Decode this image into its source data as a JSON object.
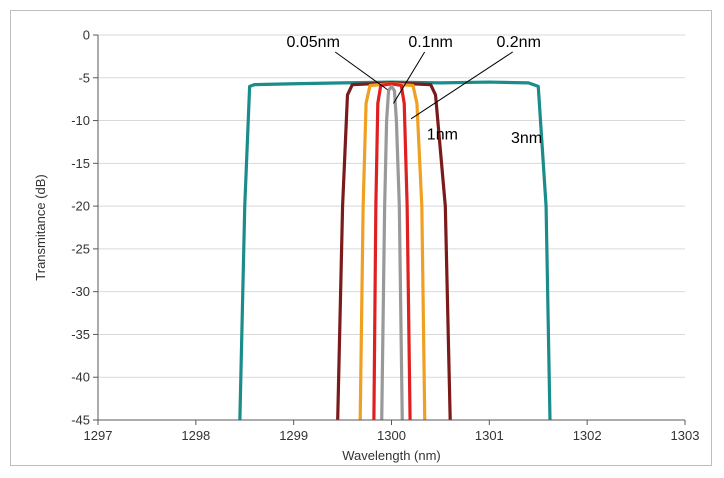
{
  "chart_data": {
    "type": "line",
    "title": "",
    "xlabel": "Wavelength (nm)",
    "ylabel": "Transmitance (dB)",
    "xlim": [
      1297,
      1303
    ],
    "ylim": [
      -45,
      0
    ],
    "x_ticks": [
      1297,
      1298,
      1299,
      1300,
      1301,
      1302,
      1303
    ],
    "y_ticks": [
      0,
      -5,
      -10,
      -15,
      -20,
      -25,
      -30,
      -35,
      -40,
      -45
    ],
    "grid": "horizontal",
    "legend": "none",
    "series": [
      {
        "name": "3nm",
        "color": "#1a8c8c",
        "points": [
          [
            1298.45,
            -45
          ],
          [
            1298.5,
            -20
          ],
          [
            1298.55,
            -6
          ],
          [
            1298.6,
            -5.8
          ],
          [
            1299.0,
            -5.7
          ],
          [
            1299.5,
            -5.6
          ],
          [
            1300.0,
            -5.5
          ],
          [
            1300.5,
            -5.6
          ],
          [
            1301.0,
            -5.5
          ],
          [
            1301.4,
            -5.6
          ],
          [
            1301.5,
            -6.0
          ],
          [
            1301.58,
            -20
          ],
          [
            1301.62,
            -45
          ]
        ]
      },
      {
        "name": "1nm",
        "color": "#7a1a1a",
        "points": [
          [
            1299.45,
            -45
          ],
          [
            1299.5,
            -20
          ],
          [
            1299.55,
            -7
          ],
          [
            1299.6,
            -5.8
          ],
          [
            1300.0,
            -5.6
          ],
          [
            1300.4,
            -5.8
          ],
          [
            1300.45,
            -7
          ],
          [
            1300.55,
            -20
          ],
          [
            1300.6,
            -45
          ]
        ]
      },
      {
        "name": "0.2nm",
        "color": "#f0a020",
        "points": [
          [
            1299.68,
            -45
          ],
          [
            1299.71,
            -20
          ],
          [
            1299.74,
            -8
          ],
          [
            1299.78,
            -5.9
          ],
          [
            1300.0,
            -5.7
          ],
          [
            1300.22,
            -5.9
          ],
          [
            1300.26,
            -8
          ],
          [
            1300.31,
            -20
          ],
          [
            1300.34,
            -45
          ]
        ]
      },
      {
        "name": "0.1nm",
        "color": "#e02020",
        "points": [
          [
            1299.82,
            -45
          ],
          [
            1299.84,
            -20
          ],
          [
            1299.86,
            -8
          ],
          [
            1299.89,
            -5.9
          ],
          [
            1300.0,
            -5.7
          ],
          [
            1300.1,
            -5.9
          ],
          [
            1300.13,
            -8
          ],
          [
            1300.16,
            -20
          ],
          [
            1300.19,
            -45
          ]
        ]
      },
      {
        "name": "0.05nm",
        "color": "#999999",
        "points": [
          [
            1299.9,
            -45
          ],
          [
            1299.93,
            -20
          ],
          [
            1299.95,
            -10
          ],
          [
            1299.97,
            -6.5
          ],
          [
            1300.0,
            -6.0
          ],
          [
            1300.03,
            -6.5
          ],
          [
            1300.05,
            -10
          ],
          [
            1300.08,
            -20
          ],
          [
            1300.11,
            -45
          ]
        ]
      }
    ],
    "annotations": [
      {
        "text": "0.05nm",
        "x": 1299.2,
        "y": -1.4,
        "arrow_to": [
          1299.96,
          -6.4
        ]
      },
      {
        "text": "0.1nm",
        "x": 1300.4,
        "y": -1.4,
        "arrow_to": [
          1300.02,
          -8.0
        ]
      },
      {
        "text": "0.2nm",
        "x": 1301.3,
        "y": -1.4,
        "arrow_to": [
          1300.2,
          -9.8
        ]
      },
      {
        "text": "1nm",
        "x": 1300.52,
        "y": -12.2
      },
      {
        "text": "3nm",
        "x": 1301.38,
        "y": -12.6
      }
    ]
  }
}
